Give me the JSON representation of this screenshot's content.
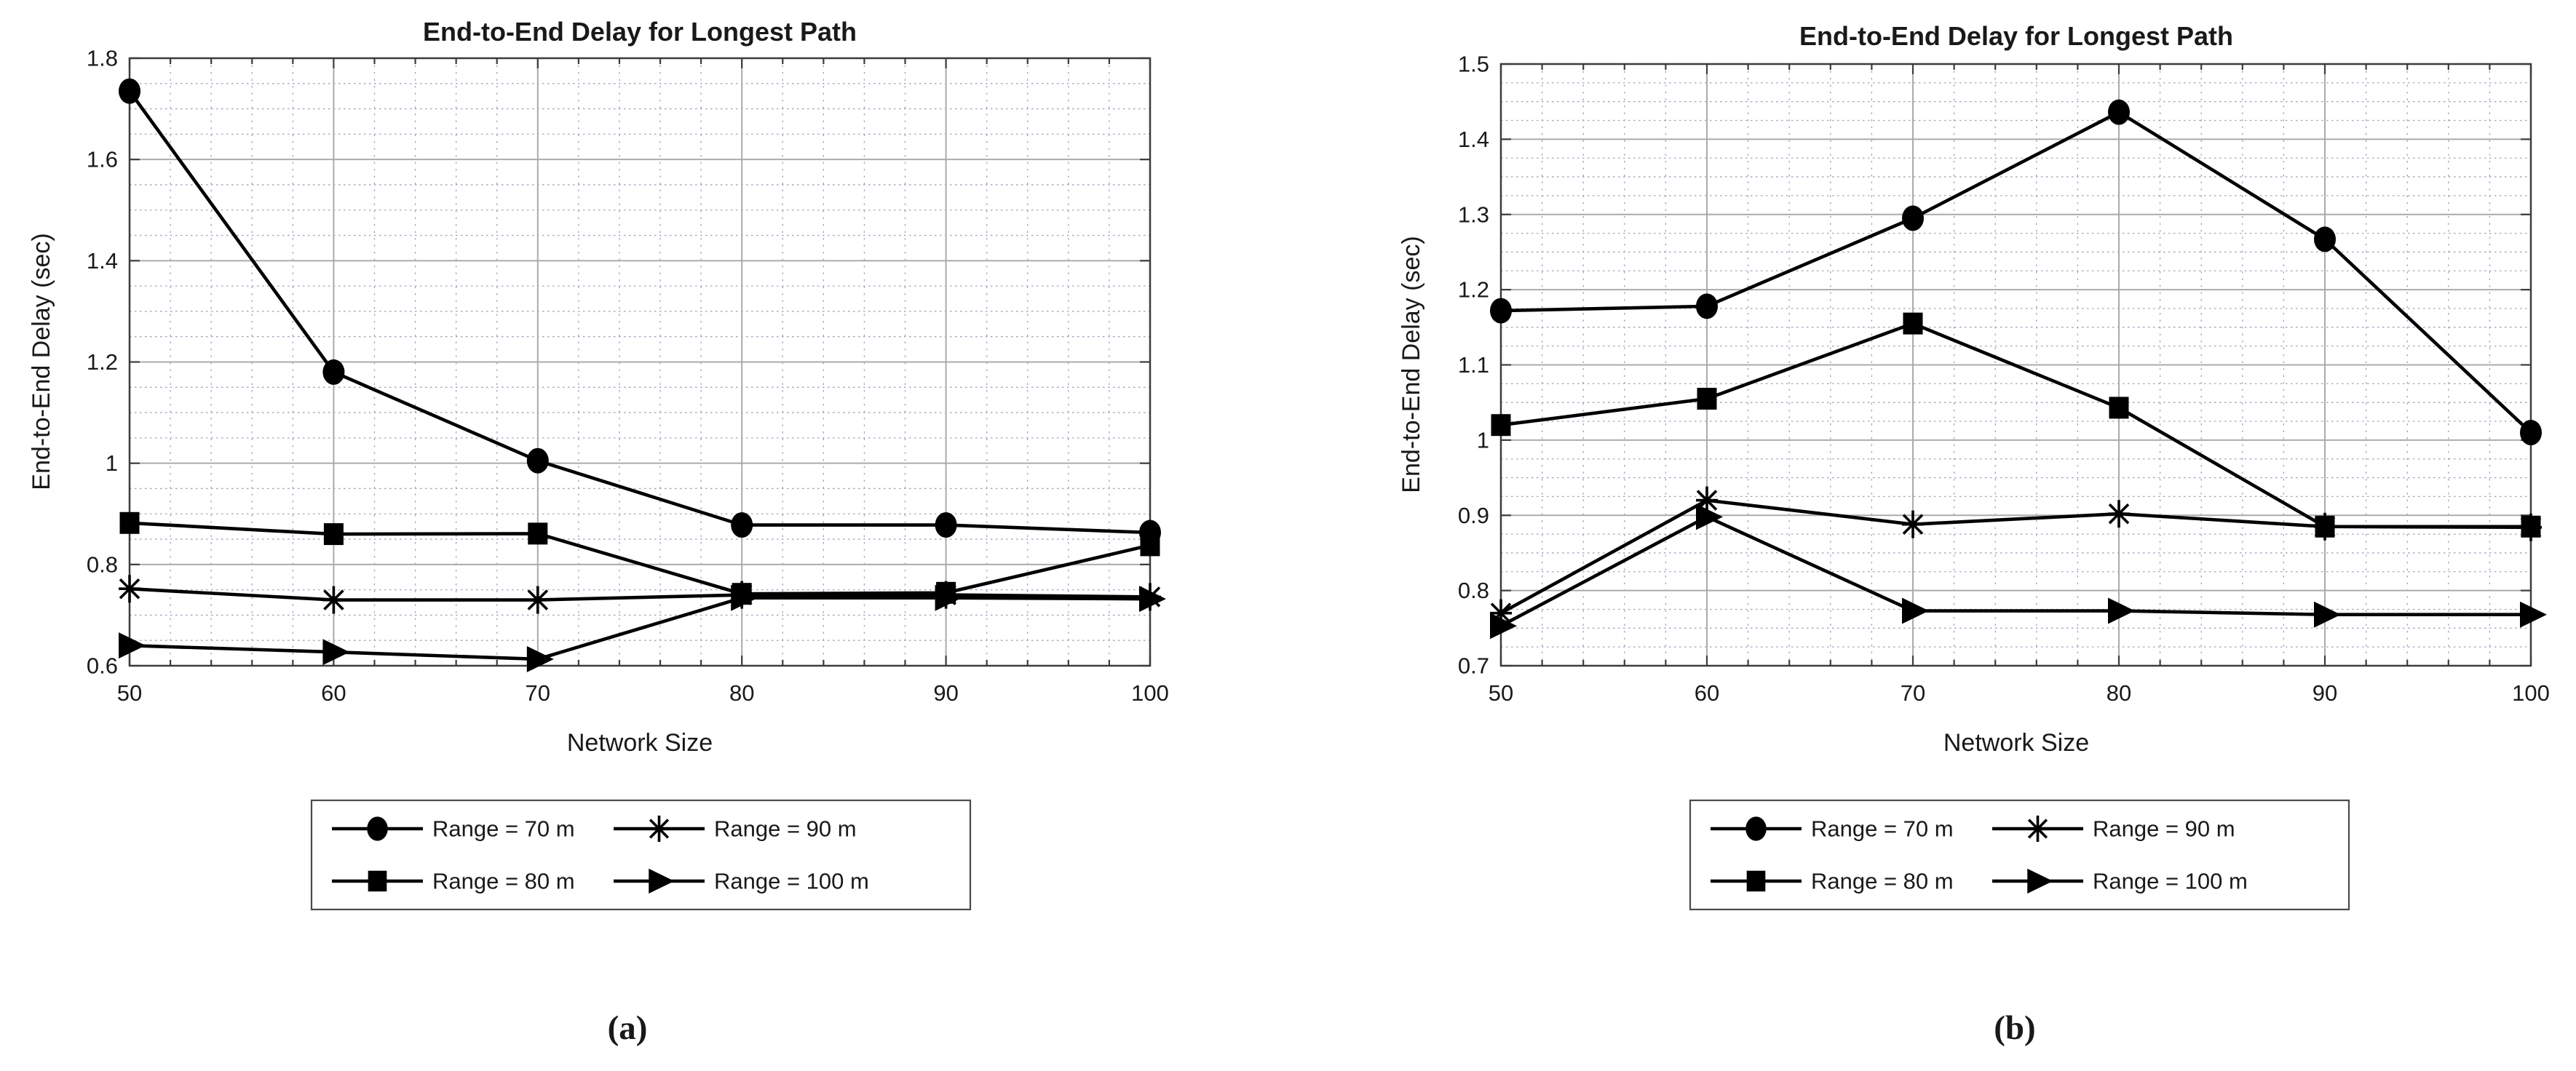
{
  "figure": {
    "background": "#ffffff",
    "captions": {
      "a": "(a)",
      "b": "(b)"
    }
  },
  "colors": {
    "line": "#000000",
    "marker": "#000000",
    "major_grid": "#ababab",
    "minor_grid": "#a2a2bc",
    "axis_frame": "#3c3c3c",
    "text": "#191919",
    "legend_border": "#4a4a4a",
    "legend_background": "#ffffff"
  },
  "chart_data": [
    {
      "id": "a",
      "panel_caption": "(a)",
      "type": "line",
      "title": "End-to-End Delay for Longest Path",
      "xlabel": "Network Size",
      "ylabel": "End-to-End Delay (sec)",
      "x": [
        50,
        60,
        70,
        80,
        90,
        100
      ],
      "xlim": [
        50,
        100
      ],
      "ylim": [
        0.6,
        1.8
      ],
      "xtick_values": [
        50,
        60,
        70,
        80,
        90,
        100
      ],
      "xtick_labels": [
        "50",
        "60",
        "70",
        "80",
        "90",
        "100"
      ],
      "ytick_values": [
        0.6,
        0.8,
        1.0,
        1.2,
        1.4,
        1.6,
        1.8
      ],
      "ytick_labels": [
        "0.6",
        "0.8",
        "1",
        "1.2",
        "1.4",
        "1.6",
        "1.8"
      ],
      "minor_x_step": 2,
      "minor_y_divisions": 4,
      "grid": "major+minor",
      "legend_position": "below",
      "series": [
        {
          "name": "Range = 70 m",
          "marker": "filled-circle",
          "values": [
            1.735,
            1.18,
            1.005,
            0.878,
            0.878,
            0.863
          ]
        },
        {
          "name": "Range = 80 m",
          "marker": "filled-square",
          "values": [
            0.882,
            0.86,
            0.861,
            0.742,
            0.744,
            0.838
          ]
        },
        {
          "name": "Range = 90 m",
          "marker": "asterisk",
          "values": [
            0.752,
            0.73,
            0.73,
            0.74,
            0.74,
            0.736
          ]
        },
        {
          "name": "Range = 100 m",
          "marker": "filled-triangle-right",
          "values": [
            0.64,
            0.627,
            0.613,
            0.734,
            0.734,
            0.732
          ]
        }
      ]
    },
    {
      "id": "b",
      "panel_caption": "(b)",
      "type": "line",
      "title": "End-to-End Delay for Longest Path",
      "xlabel": "Network Size",
      "ylabel": "End-to-End Delay (sec)",
      "x": [
        50,
        60,
        70,
        80,
        90,
        100
      ],
      "xlim": [
        50,
        100
      ],
      "ylim": [
        0.7,
        1.5
      ],
      "xtick_values": [
        50,
        60,
        70,
        80,
        90,
        100
      ],
      "xtick_labels": [
        "50",
        "60",
        "70",
        "80",
        "90",
        "100"
      ],
      "ytick_values": [
        0.7,
        0.8,
        0.9,
        1.0,
        1.1,
        1.2,
        1.3,
        1.4,
        1.5
      ],
      "ytick_labels": [
        "0.7",
        "0.8",
        "0.9",
        "1",
        "1.1",
        "1.2",
        "1.3",
        "1.4",
        "1.5"
      ],
      "minor_x_step": 2,
      "minor_y_divisions": 4,
      "grid": "major+minor",
      "legend_position": "below",
      "series": [
        {
          "name": "Range = 70 m",
          "marker": "filled-circle",
          "values": [
            1.172,
            1.178,
            1.295,
            1.436,
            1.267,
            1.01
          ]
        },
        {
          "name": "Range = 80 m",
          "marker": "filled-square",
          "values": [
            1.02,
            1.055,
            1.155,
            1.043,
            0.885,
            0.885
          ]
        },
        {
          "name": "Range = 90 m",
          "marker": "asterisk",
          "values": [
            0.77,
            0.92,
            0.888,
            0.902,
            0.885,
            0.884
          ]
        },
        {
          "name": "Range = 100 m",
          "marker": "filled-triangle-right",
          "values": [
            0.753,
            0.898,
            0.773,
            0.773,
            0.768,
            0.768
          ]
        }
      ]
    }
  ]
}
